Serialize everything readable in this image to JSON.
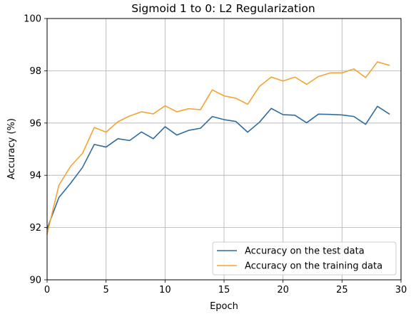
{
  "chart_data": {
    "type": "line",
    "title": "Sigmoid 1 to 0:  L2 Regularization",
    "xlabel": "Epoch",
    "ylabel": "Accuracy (%)",
    "xlim": [
      0,
      30
    ],
    "ylim": [
      90,
      100
    ],
    "xticks": [
      0,
      5,
      10,
      15,
      20,
      25,
      30
    ],
    "yticks": [
      90,
      92,
      94,
      96,
      98,
      100
    ],
    "grid": true,
    "legend_position": "lower-right",
    "x": [
      0,
      1,
      2,
      3,
      4,
      5,
      6,
      7,
      8,
      9,
      10,
      11,
      12,
      13,
      14,
      15,
      16,
      17,
      18,
      19,
      20,
      21,
      22,
      23,
      24,
      25,
      26,
      27,
      28,
      29
    ],
    "series": [
      {
        "name": "Accuracy on the test data",
        "color": "#2f6c9f",
        "values": [
          91.95,
          93.15,
          93.7,
          94.3,
          95.18,
          95.08,
          95.4,
          95.33,
          95.66,
          95.4,
          95.86,
          95.54,
          95.72,
          95.8,
          96.25,
          96.13,
          96.06,
          95.65,
          96.03,
          96.56,
          96.32,
          96.3,
          96.01,
          96.34,
          96.33,
          96.31,
          96.25,
          95.95,
          96.64,
          96.35
        ]
      },
      {
        "name": "Accuracy on the training data",
        "color": "#f5a431",
        "values": [
          91.75,
          93.62,
          94.35,
          94.84,
          95.83,
          95.65,
          96.05,
          96.27,
          96.43,
          96.35,
          96.66,
          96.43,
          96.55,
          96.51,
          97.27,
          97.04,
          96.95,
          96.72,
          97.4,
          97.76,
          97.61,
          97.76,
          97.48,
          97.78,
          97.92,
          97.92,
          98.07,
          97.74,
          98.34,
          98.21
        ]
      }
    ]
  }
}
